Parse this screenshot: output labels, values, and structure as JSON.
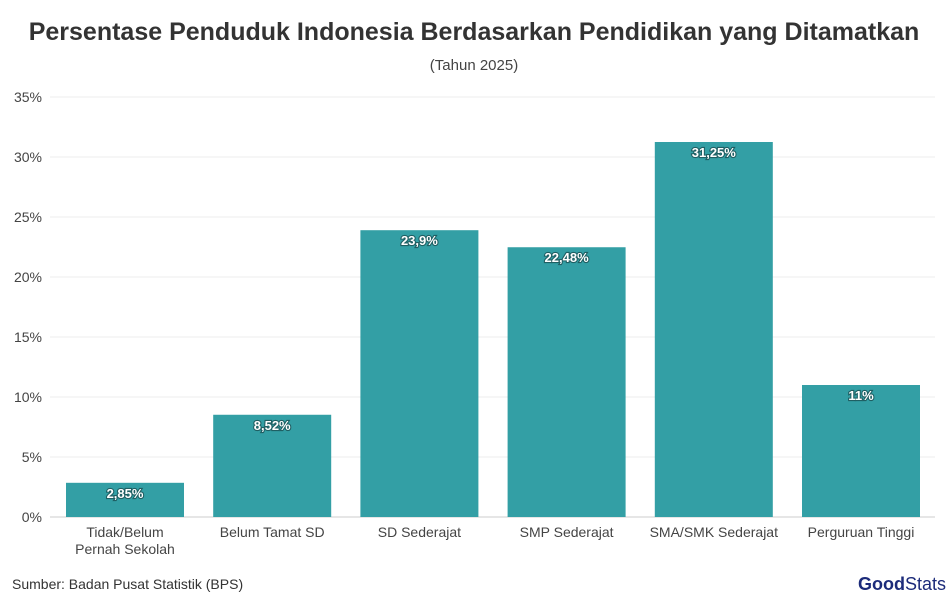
{
  "chart_data": {
    "type": "bar",
    "title": "Persentase Penduduk Indonesia Berdasarkan Pendidikan yang Ditamatkan",
    "subtitle": "(Tahun 2025)",
    "categories": [
      [
        "Tidak/Belum",
        "Pernah Sekolah"
      ],
      [
        "Belum Tamat SD"
      ],
      [
        "SD Sederajat"
      ],
      [
        "SMP Sederajat"
      ],
      [
        "SMA/SMK Sederajat"
      ],
      [
        "Perguruan Tinggi"
      ]
    ],
    "values": [
      2.85,
      8.52,
      23.9,
      22.48,
      31.25,
      11
    ],
    "data_labels": [
      "2,85%",
      "8,52%",
      "23,9%",
      "22,48%",
      "31,25%",
      "11%"
    ],
    "ylim": [
      0,
      35
    ],
    "yticks": [
      0,
      5,
      10,
      15,
      20,
      25,
      30,
      35
    ],
    "ytick_labels": [
      "0%",
      "5%",
      "10%",
      "15%",
      "20%",
      "25%",
      "30%",
      "35%"
    ],
    "grid": true,
    "bar_color": "#339fa5"
  },
  "source": "Sumber: Badan Pusat Statistik (BPS)",
  "logo": {
    "part1": "Good",
    "part2": "Stats",
    "color": "#1c2b7a"
  }
}
